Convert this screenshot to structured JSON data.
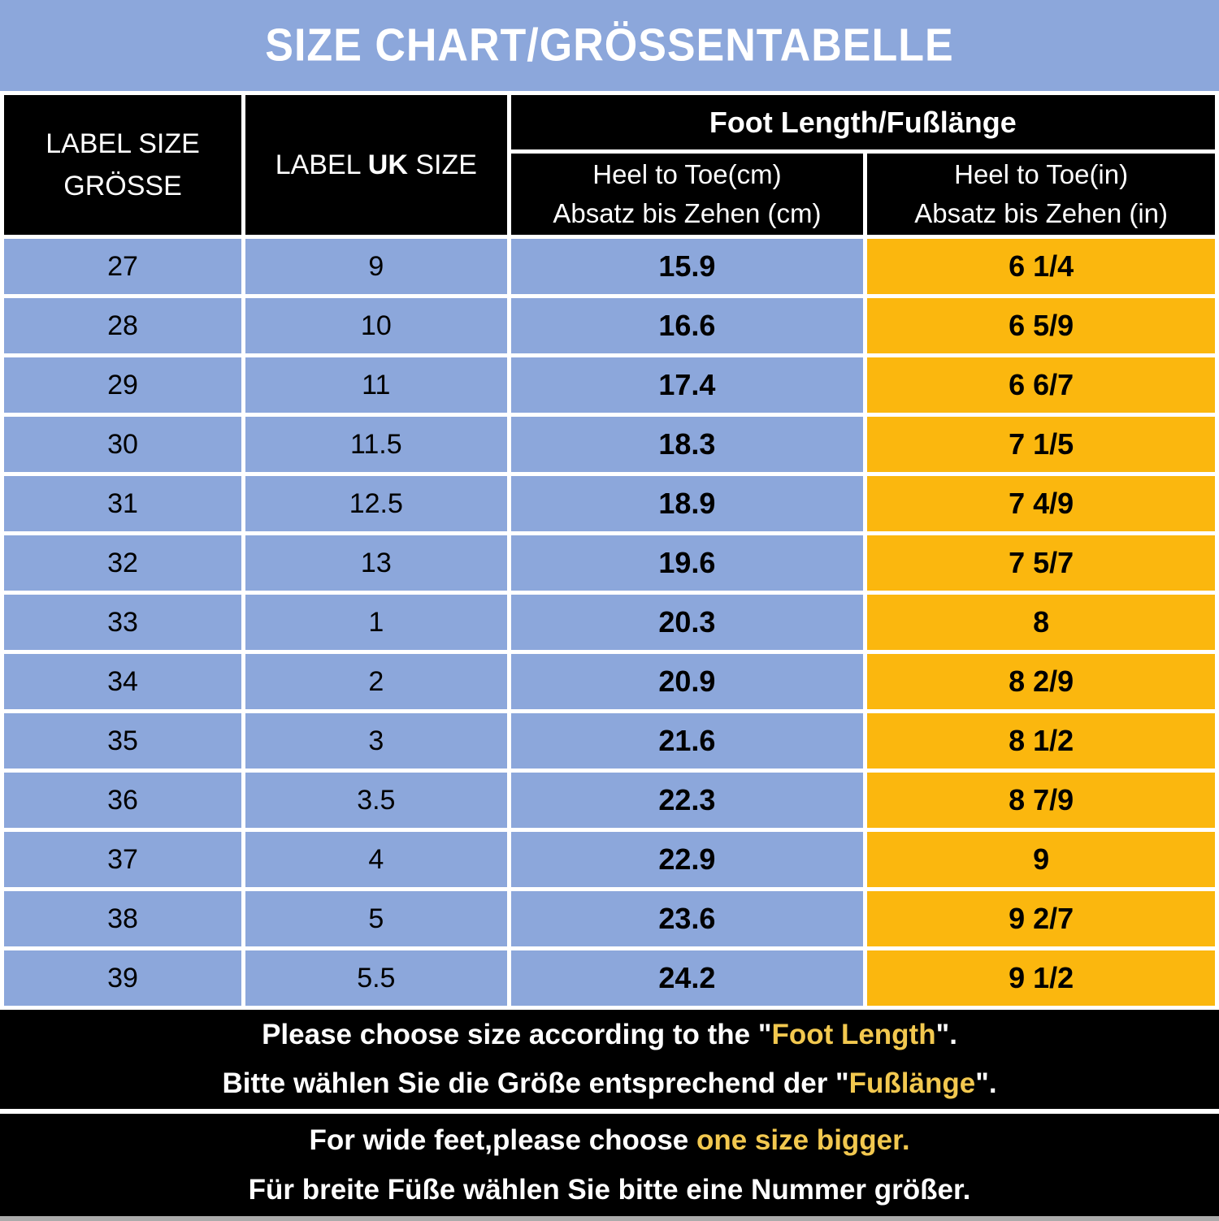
{
  "colors": {
    "banner_blue": "#8CA7DB",
    "cell_blue": "#8CA7DB",
    "cell_orange": "#FBB70E",
    "highlight_yellow": "#F2C84F",
    "panel_black": "#000000"
  },
  "banner": {
    "title": "SIZE CHART/GRÖSSENTABELLE"
  },
  "table": {
    "label_size_line1": "LABEL SIZE",
    "label_size_line2": "GRÖSSE",
    "uk_pre": "LABEL ",
    "uk_bold": "UK",
    "uk_post": " SIZE",
    "foot_length": "Foot Length/Fußlänge",
    "cm_line1": "Heel to Toe(cm)",
    "cm_line2": "Absatz bis Zehen (cm)",
    "in_line1": "Heel to Toe(in)",
    "in_line2": "Absatz bis Zehen (in)",
    "rows": [
      {
        "label_size": "27",
        "uk_size": "9",
        "cm": "15.9",
        "inch": "6 1/4"
      },
      {
        "label_size": "28",
        "uk_size": "10",
        "cm": "16.6",
        "inch": "6 5/9"
      },
      {
        "label_size": "29",
        "uk_size": "11",
        "cm": "17.4",
        "inch": "6 6/7"
      },
      {
        "label_size": "30",
        "uk_size": "11.5",
        "cm": "18.3",
        "inch": "7 1/5"
      },
      {
        "label_size": "31",
        "uk_size": "12.5",
        "cm": "18.9",
        "inch": "7 4/9"
      },
      {
        "label_size": "32",
        "uk_size": "13",
        "cm": "19.6",
        "inch": "7 5/7"
      },
      {
        "label_size": "33",
        "uk_size": "1",
        "cm": "20.3",
        "inch": "8"
      },
      {
        "label_size": "34",
        "uk_size": "2",
        "cm": "20.9",
        "inch": "8 2/9"
      },
      {
        "label_size": "35",
        "uk_size": "3",
        "cm": "21.6",
        "inch": "8 1/2"
      },
      {
        "label_size": "36",
        "uk_size": "3.5",
        "cm": "22.3",
        "inch": "8 7/9"
      },
      {
        "label_size": "37",
        "uk_size": "4",
        "cm": "22.9",
        "inch": "9"
      },
      {
        "label_size": "38",
        "uk_size": "5",
        "cm": "23.6",
        "inch": "9 2/7"
      },
      {
        "label_size": "39",
        "uk_size": "5.5",
        "cm": "24.2",
        "inch": "9 1/2"
      }
    ]
  },
  "notes": {
    "n1_en_pre": "Please choose size according to the \"",
    "n1_en_hl": "Foot Length",
    "n1_en_post": "\".",
    "n1_de_pre": "Bitte wählen Sie die Größe entsprechend der \"",
    "n1_de_hl": "Fußlänge",
    "n1_de_post": "\".",
    "n2_en_pre": "For wide feet,please choose ",
    "n2_en_hl": "one size bigger.",
    "n2_de": "Für breite Füße wählen Sie bitte eine Nummer größer."
  },
  "chart_data": {
    "type": "table",
    "title": "SIZE CHART/GRÖSSENTABELLE",
    "columns": [
      "LABEL SIZE GRÖSSE",
      "LABEL UK SIZE",
      "Foot Length/Fußlänge — Heel to Toe(cm) / Absatz bis Zehen (cm)",
      "Foot Length/Fußlänge — Heel to Toe(in) / Absatz bis Zehen (in)"
    ],
    "rows": [
      [
        "27",
        "9",
        "15.9",
        "6 1/4"
      ],
      [
        "28",
        "10",
        "16.6",
        "6 5/9"
      ],
      [
        "29",
        "11",
        "17.4",
        "6 6/7"
      ],
      [
        "30",
        "11.5",
        "18.3",
        "7 1/5"
      ],
      [
        "31",
        "12.5",
        "18.9",
        "7 4/9"
      ],
      [
        "32",
        "13",
        "19.6",
        "7 5/7"
      ],
      [
        "33",
        "1",
        "20.3",
        "8"
      ],
      [
        "34",
        "2",
        "20.9",
        "8 2/9"
      ],
      [
        "35",
        "3",
        "21.6",
        "8 1/2"
      ],
      [
        "36",
        "3.5",
        "22.3",
        "8 7/9"
      ],
      [
        "37",
        "4",
        "22.9",
        "9"
      ],
      [
        "38",
        "5",
        "23.6",
        "9 2/7"
      ],
      [
        "39",
        "5.5",
        "24.2",
        "9 1/2"
      ]
    ]
  }
}
